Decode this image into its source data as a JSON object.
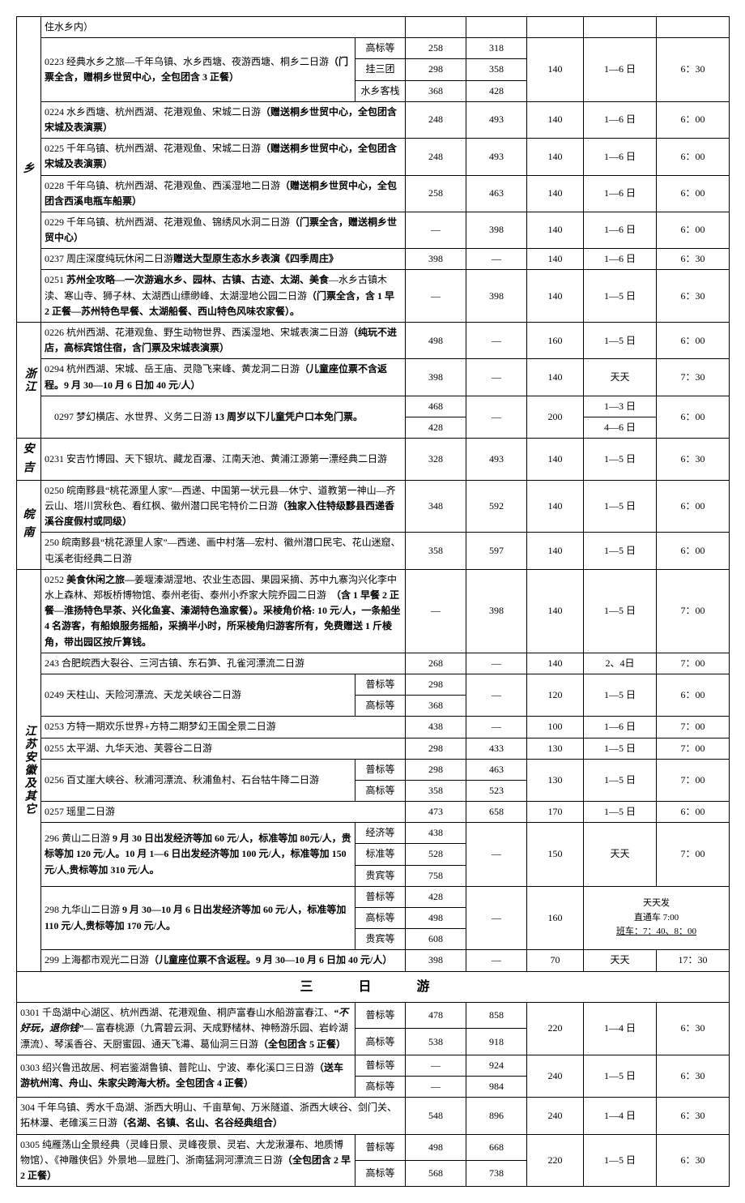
{
  "rows": [
    {
      "type": "row",
      "region": "乡",
      "regionRowspan": 1,
      "regionClass": "region-h",
      "desc": "住水乡内）",
      "descColspan": 2,
      "descRowspan": 1,
      "p1": "",
      "p2": "",
      "p3": "",
      "date": "",
      "time": ""
    },
    {
      "type": "multi",
      "desc": "0223 经典水乡之旅—千年乌镇、水乡西塘、夜游西塘、桐乡二日游<span class='bold'>（门票全含，赠桐乡世贸中心，全包团含 3 正餐）</span>",
      "tiers": [
        "高标等",
        "挂三团",
        "水乡客栈"
      ],
      "p1": [
        "258",
        "298",
        "368"
      ],
      "p2": [
        "318",
        "358",
        "428"
      ],
      "p3": "140",
      "date": "1—6 日",
      "time": "6：30"
    },
    {
      "type": "row",
      "desc": "0224 水乡西塘、杭州西湖、花港观鱼、宋城二日游<span class='bold'>（赠送桐乡世贸中心，全包团含宋城及表演票）</span>",
      "descColspan": 2,
      "p1": "248",
      "p2": "493",
      "p3": "140",
      "date": "1—6 日",
      "time": "6：00"
    },
    {
      "type": "row",
      "desc": "0225 千年乌镇、杭州西湖、花港观鱼、宋城二日游<span class='bold'>（赠送桐乡世贸中心，全包团含宋城及表演票）</span>",
      "descColspan": 2,
      "p1": "248",
      "p2": "493",
      "p3": "140",
      "date": "1—6 日",
      "time": "6：00"
    },
    {
      "type": "row",
      "desc": "0228 千年乌镇、杭州西湖、花港观鱼、西溪湿地二日游<span class='bold'>（赠送桐乡世贸中心，全包团含西溪电瓶车船票）</span>",
      "descColspan": 2,
      "p1": "258",
      "p2": "463",
      "p3": "140",
      "date": "1—6 日",
      "time": "6：00"
    },
    {
      "type": "row",
      "desc": "0229 千年乌镇、杭州西湖、花港观鱼、锦绣风水洞二日游<span class='bold'>（门票全含，赠送桐乡世贸中心）</span>",
      "descColspan": 2,
      "p1": "—",
      "p2": "398",
      "p3": "140",
      "date": "1—6 日",
      "time": "6：00"
    },
    {
      "type": "row",
      "desc": "0237 周庄深度纯玩休闲二日游<span class='bold'>赠送大型原生态水乡表演《四季周庄》</span>",
      "descColspan": 2,
      "p1": "398",
      "p2": "—",
      "p3": "140",
      "date": "1—6 日",
      "time": "6：30"
    },
    {
      "type": "row",
      "desc": "0251 <span class='bold'>苏州全攻略—一次游遍水乡、园林、古镇、古迹、太湖、美食</span>—水乡古镇木渎、寒山寺、狮子林、太湖西山缥缈峰、太湖湿地公园二日游<span class='bold'>（门票全含，含 1 早 2 正餐—苏州特色早餐、太湖船餐、西山特色风味农家餐）。</span>",
      "descColspan": 2,
      "p1": "—",
      "p2": "398",
      "p3": "140",
      "date": "1—5 日",
      "time": "6：30"
    },
    {
      "type": "row",
      "region": "浙江",
      "regionRowspan": 4,
      "desc": "0226 杭州西湖、花港观鱼、野生动物世界、西溪湿地、宋城表演二日游<span class='bold'>（纯玩不进店，高标宾馆住宿，含门票及宋城表演票）</span>",
      "descColspan": 2,
      "p1": "498",
      "p2": "—",
      "p3": "160",
      "date": "1—5 日",
      "time": "6：00"
    },
    {
      "type": "row",
      "desc": "0294 杭州西湖、宋城、岳王庙、灵隐飞来峰、黄龙洞二日游<span class='bold'>（儿童座位票不含返程。9 月 30—10 月 6 日加 40 元/人）</span>",
      "descColspan": 2,
      "p1": "398",
      "p2": "—",
      "p3": "140",
      "date": "天天",
      "time": "7：30"
    },
    {
      "type": "multi",
      "desc": "　0297 梦幻横店、水世界、义务二日游 <span class='bold'>13 周岁以下儿童凭户口本免门票。</span>",
      "tiers": [
        "",
        ""
      ],
      "useDescColspan": true,
      "p1": [
        "468",
        "428"
      ],
      "p2single": "—",
      "p3": "200",
      "dates": [
        "1—3 日",
        "4—6 日"
      ],
      "time": "6：00"
    },
    {
      "type": "row",
      "region": "安吉",
      "regionRowspan": 1,
      "regionClass": "region-h",
      "desc": "0231 安吉竹博园、天下银坑、藏龙百瀑、江南天池、黄浦江源第一漂经典二日游",
      "descColspan": 2,
      "p1": "328",
      "p2": "493",
      "p3": "140",
      "date": "1—5 日",
      "time": "6：30"
    },
    {
      "type": "row",
      "region": "皖南",
      "regionRowspan": 2,
      "regionClass": "region-h",
      "desc": "0250 皖南黟县“桃花源里人家”—西递、中国第一状元县—休宁、道教第一神山—齐云山、塔川赏秋色、看红枫、徽州潜口民宅特价二日游<span class='bold'>（独家入住特级黟县西递香溪谷度假村或同级）</span>",
      "descColspan": 2,
      "p1": "348",
      "p2": "592",
      "p3": "140",
      "date": "1—5 日",
      "time": "6：00"
    },
    {
      "type": "row",
      "desc": "250 皖南黟县“桃花源里人家”—西递、画中村落—宏村、徽州潜口民宅、花山迷窟、屯溪老街经典二日游",
      "descColspan": 2,
      "p1": "358",
      "p2": "597",
      "p3": "140",
      "date": "1—5 日",
      "time": "6：00"
    },
    {
      "type": "row",
      "region": "江苏安徽及其它",
      "regionRowspan": 12,
      "desc": "0252 <span class='bold'>美食休闲之旅—</span>姜堰溱湖湿地、农业生态园、果园采摘、苏中九寨沟兴化李中水上森林、郑板桥博物馆、泰州老街、泰州小乔家大院乔园二日游　<span class='bold'>（含 1 早餐 2 正餐—淮扬特色早茶、兴化鱼宴、溱湖特色渔家餐）。采棱角价格: 10 元/人，一条船坐 4 名游客，有船娘服务摇船，采摘半小时，所采棱角归游客所有，免费赠送 1 斤棱角，带出园区按斤算钱。</span>",
      "descColspan": 2,
      "p1": "—",
      "p2": "398",
      "p3": "140",
      "date": "1—5 日",
      "time": "7：00"
    },
    {
      "type": "row",
      "desc": "243 合肥皖西大裂谷、三河古镇、东石笋、孔雀河漂流二日游",
      "descColspan": 2,
      "p1": "268",
      "p2": "—",
      "p3": "140",
      "date": "2、4日",
      "time": "7：00"
    },
    {
      "type": "multi",
      "desc": "0249 天柱山、天险河漂流、天龙关峡谷二日游",
      "tiers": [
        "普标等",
        "高标等"
      ],
      "p1": [
        "298",
        "368"
      ],
      "p2single": "—",
      "p3": "120",
      "date": "1—5 日",
      "time": "6：00"
    },
    {
      "type": "row",
      "desc": "0253 方特一期欢乐世界+方特二期梦幻王国全景二日游",
      "descColspan": 2,
      "p1": "438",
      "p2": "—",
      "p3": "100",
      "date": "1—6 日",
      "time": "7：00"
    },
    {
      "type": "row",
      "desc": "0255 太平湖、九华天池、芙蓉谷二日游",
      "descColspan": 2,
      "p1": "298",
      "p2": "433",
      "p3": "130",
      "date": "1—5 日",
      "time": "7：00"
    },
    {
      "type": "multi",
      "desc": "0256 百丈崖大峡谷、秋浦河漂流、秋浦鱼村、石台牯牛降二日游",
      "tiers": [
        "普标等",
        "高标等"
      ],
      "p1": [
        "298",
        "358"
      ],
      "p2": [
        "463",
        "523"
      ],
      "p3": "130",
      "date": "1—5 日",
      "time": "7：00"
    },
    {
      "type": "row",
      "desc": "0257 瑶里二日游",
      "descColspan": 2,
      "p1": "473",
      "p2": "658",
      "p3": "170",
      "date": "1—5 日",
      "time": "6：00"
    },
    {
      "type": "multi",
      "desc": "296 黄山二日游 <span class='bold'>9 月 30 日出发经济等加 60 元/人，标准等加 80元/人，贵标等加 120 元/人。10 月 1—6 日出发经济等加 100 元/人，标准等加 150 元/人,贵标等加 310 元/人。</span>",
      "tiers": [
        "经济等",
        "标准等",
        "贵宾等"
      ],
      "p1": [
        "438",
        "528",
        "758"
      ],
      "p2single": "—",
      "p3": "150",
      "date": "天天",
      "time": "7：00"
    },
    {
      "type": "multi",
      "desc": "298 九华山二日游 <span class='bold'>9 月 30—10 月 6 日出发经济等加 60 元/人，标准等加 110 元/人,贵标等加 170 元/人。</span>",
      "tiers": [
        "普标等",
        "高标等",
        "贵宾等"
      ],
      "p1": [
        "428",
        "498",
        "608"
      ],
      "p2single": "—",
      "p3": "160",
      "dateSpecial": "天天发\n直通车 7:00\n班车：7：40、8：00",
      "dateColspan": 2
    },
    {
      "type": "row",
      "desc": "299 上海都市观光二日游<span class='bold'>（儿童座位票不含返程。9 月 30—10 月 6 日加 40 元/人）</span>",
      "descColspan": 2,
      "p1": "398",
      "p2": "—",
      "p3": "70",
      "date": "天天",
      "time": "17：30"
    },
    {
      "type": "section",
      "label": "三　日　游"
    },
    {
      "type": "multi",
      "region": "",
      "noRegion": true,
      "desc": "0301 千岛湖中心湖区、杭州西湖、花港观鱼、桐庐富春山水船游富春江、<span class='bold'><i>“不好玩，退你钱”</i></span>— 富春桃源（九霄碧云洞、天成野槠林、神畅游乐园、岩岭湖漂流）、琴溪香谷、天厨蜜园、通天飞濗、葛仙洞三日游<span class='bold'>（全包团含 5 正餐）</span>",
      "tiers": [
        "普标等",
        "高标等"
      ],
      "p1": [
        "478",
        "538"
      ],
      "p2": [
        "858",
        "918"
      ],
      "p3": "220",
      "date": "1—4 日",
      "time": "6：30"
    },
    {
      "type": "multi",
      "noRegion": true,
      "desc": "0303 绍兴鲁迅故居、柯岩鉴湖鲁镇、普陀山、宁波、奉化溪口三日游<span class='bold'>（送车游杭州湾、舟山、朱家尖跨海大桥。全包团含 4 正餐）</span>",
      "tiers": [
        "普标等",
        "高标等"
      ],
      "p1": [
        "—",
        "—"
      ],
      "p2": [
        "924",
        "984"
      ],
      "p3": "240",
      "date": "1—5 日",
      "time": "6：30"
    },
    {
      "type": "row",
      "noRegion": true,
      "desc": "304 千年乌镇、秀水千岛湖、浙西大明山、千亩草甸、万米隧道、浙西大峡谷、剑门关、拓林瀑、老碓溪三日游<span class='bold'>（名湖、名镇、名山、名谷经典组合）</span>",
      "descColspan": 2,
      "p1": "548",
      "p2": "896",
      "p3": "240",
      "date": "1—4 日",
      "time": "6：30"
    },
    {
      "type": "multi",
      "noRegion": true,
      "desc": "0305 纯雁荡山全景经典（灵峰日景、灵峰夜景、灵岩、大龙湫瀑布、地质博物馆）、《神雕侠侣》外景地—显胜门、浙南猛洞河漂流三日游<span class='bold'>（全包团含 2 早 2 正餐）</span>",
      "tiers": [
        "普标等",
        "高标等"
      ],
      "p1": [
        "498",
        "568"
      ],
      "p2": [
        "668",
        "738"
      ],
      "p3": "220",
      "date": "1—5 日",
      "time": "6：30"
    }
  ]
}
